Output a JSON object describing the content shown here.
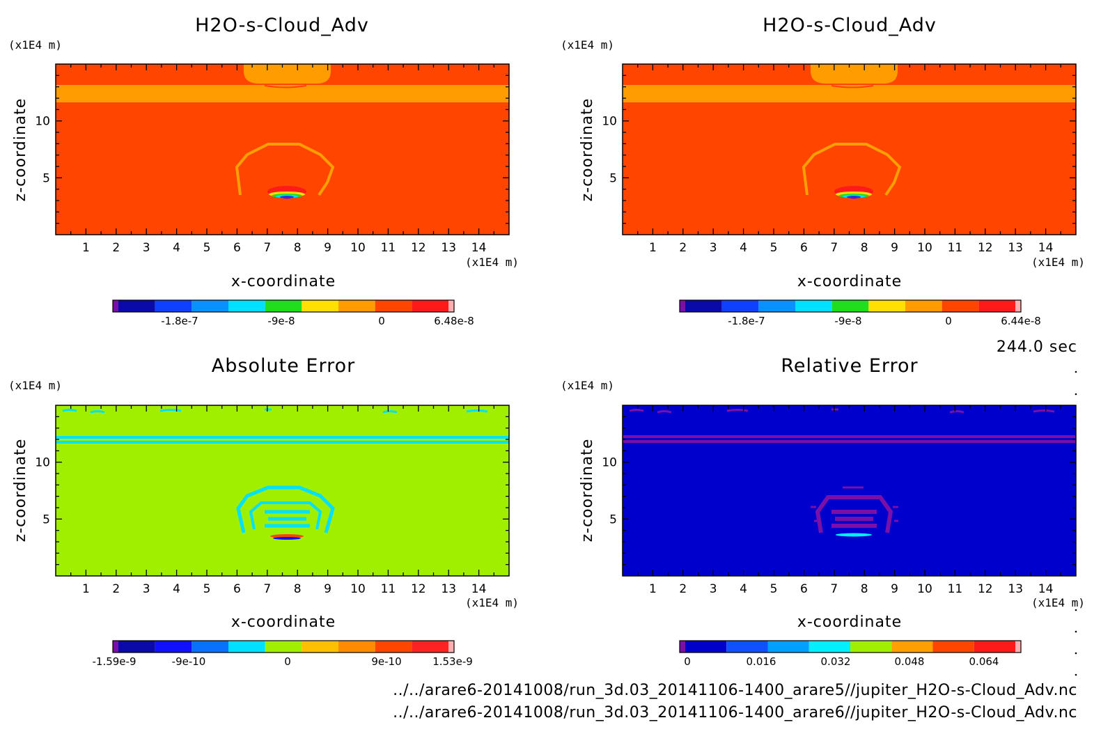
{
  "chart_data": [
    {
      "type": "heatmap",
      "title": "H2O-s-Cloud_Adv",
      "xlabel": "x-coordinate",
      "ylabel": "z-coordinate",
      "x_unit": "(x1E4 m)",
      "y_unit": "(x1E4 m)",
      "x_ticks": [
        "1",
        "2",
        "3",
        "4",
        "5",
        "6",
        "7",
        "8",
        "9",
        "10",
        "11",
        "12",
        "13",
        "14"
      ],
      "y_ticks": [
        "5",
        "10"
      ],
      "xlim": [
        0,
        15
      ],
      "ylim": [
        0,
        15
      ],
      "background_color": "#ff4500",
      "colorbar": {
        "colors": [
          "#7b10a8",
          "#0a0aa8",
          "#1040ff",
          "#0a90ff",
          "#00e0ff",
          "#20dd20",
          "#ffe000",
          "#ff9c00",
          "#ff4500",
          "#ff1a1a",
          "#ffb0b0"
        ],
        "labels": [
          "-1.8e-7",
          "-9e-8",
          "0",
          "6.48e-8"
        ]
      }
    },
    {
      "type": "heatmap",
      "title": "H2O-s-Cloud_Adv",
      "xlabel": "x-coordinate",
      "ylabel": "z-coordinate",
      "x_unit": "(x1E4 m)",
      "y_unit": "(x1E4 m)",
      "x_ticks": [
        "1",
        "2",
        "3",
        "4",
        "5",
        "6",
        "7",
        "8",
        "9",
        "10",
        "11",
        "12",
        "13",
        "14"
      ],
      "y_ticks": [
        "5",
        "10"
      ],
      "xlim": [
        0,
        15
      ],
      "ylim": [
        0,
        15
      ],
      "background_color": "#ff4500",
      "colorbar": {
        "colors": [
          "#7b10a8",
          "#0a0aa8",
          "#1040ff",
          "#0a90ff",
          "#00e0ff",
          "#20dd20",
          "#ffe000",
          "#ff9c00",
          "#ff4500",
          "#ff1a1a",
          "#ffb0b0"
        ],
        "labels": [
          "-1.8e-7",
          "-9e-8",
          "0",
          "6.44e-8"
        ]
      }
    },
    {
      "type": "heatmap",
      "title": "Absolute Error",
      "xlabel": "x-coordinate",
      "ylabel": "z-coordinate",
      "x_unit": "(x1E4 m)",
      "y_unit": "(x1E4 m)",
      "x_ticks": [
        "1",
        "2",
        "3",
        "4",
        "5",
        "6",
        "7",
        "8",
        "9",
        "10",
        "11",
        "12",
        "13",
        "14"
      ],
      "y_ticks": [
        "5",
        "10"
      ],
      "xlim": [
        0,
        15
      ],
      "ylim": [
        0,
        15
      ],
      "background_color": "#a0ee00",
      "colorbar": {
        "colors": [
          "#7b10a8",
          "#0a0aa8",
          "#1010ff",
          "#0a70ff",
          "#00e0ff",
          "#a0ee00",
          "#ffc000",
          "#ff8c00",
          "#ff4500",
          "#ff2222",
          "#ffb0b0"
        ],
        "labels": [
          "-1.59e-9",
          "-9e-10",
          "0",
          "9e-10",
          "1.53e-9"
        ]
      }
    },
    {
      "type": "heatmap",
      "title": "Relative Error",
      "xlabel": "x-coordinate",
      "ylabel": "z-coordinate",
      "x_unit": "(x1E4 m)",
      "y_unit": "(x1E4 m)",
      "x_ticks": [
        "1",
        "2",
        "3",
        "4",
        "5",
        "6",
        "7",
        "8",
        "9",
        "10",
        "11",
        "12",
        "13",
        "14"
      ],
      "y_ticks": [
        "5",
        "10"
      ],
      "xlim": [
        0,
        15
      ],
      "ylim": [
        0,
        15
      ],
      "background_color": "#0000cc",
      "colorbar": {
        "colors": [
          "#7b10a8",
          "#0000cc",
          "#1050ff",
          "#00a0ff",
          "#00f0ff",
          "#a0ee00",
          "#ffa000",
          "#ff4500",
          "#ff1a1a",
          "#ffb0b0"
        ],
        "labels": [
          "0",
          "0.016",
          "0.032",
          "0.048",
          "0.064"
        ]
      }
    }
  ],
  "time_label": "244.0 sec",
  "files": [
    "../../arare6-20141008/run_3d.03_20141106-1400_arare5//jupiter_H2O-s-Cloud_Adv.nc",
    "../../arare6-20141008/run_3d.03_20141106-1400_arare6//jupiter_H2O-s-Cloud_Adv.nc"
  ]
}
